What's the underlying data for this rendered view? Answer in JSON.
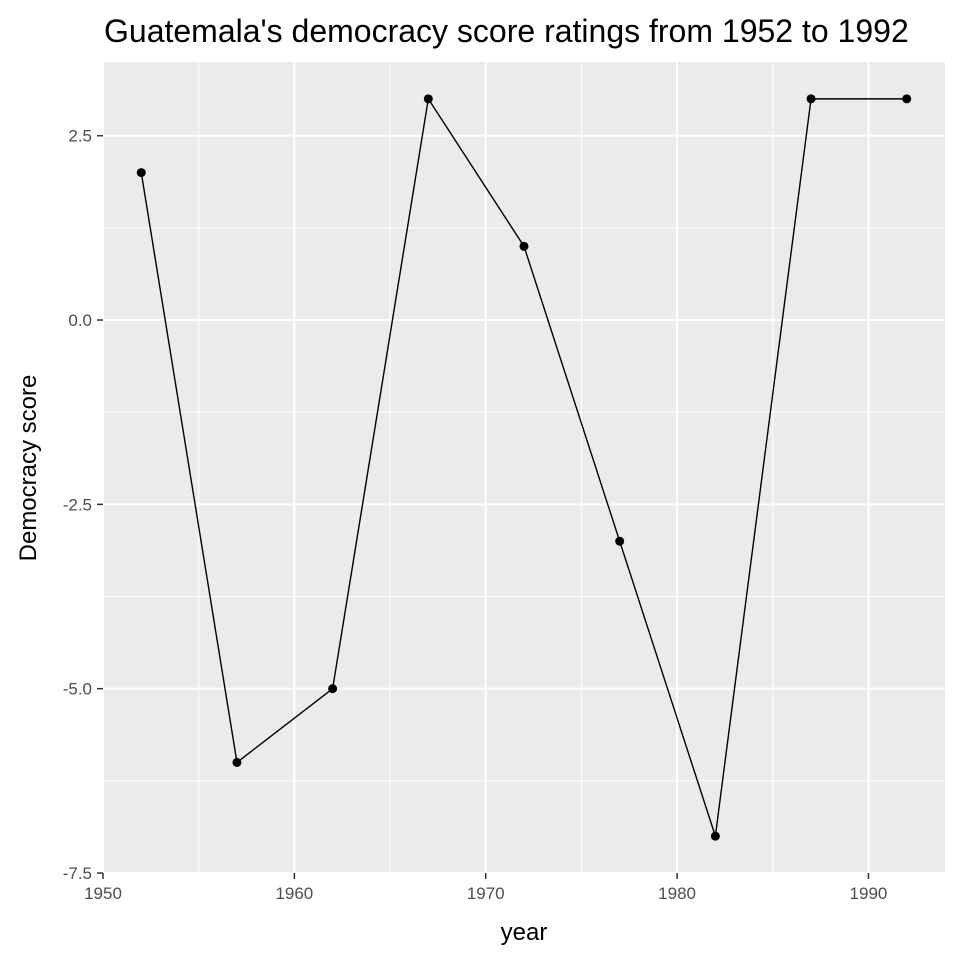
{
  "chart_data": {
    "type": "line",
    "title": "Guatemala's democracy score ratings from 1952 to 1992",
    "xlabel": "year",
    "ylabel": "Democracy score",
    "x": [
      1952,
      1957,
      1962,
      1967,
      1972,
      1977,
      1982,
      1987,
      1992
    ],
    "series": [
      {
        "values": [
          2,
          -6,
          -5,
          3,
          1,
          -3,
          -7,
          3,
          3
        ]
      }
    ],
    "xlim": [
      1950,
      1994
    ],
    "ylim": [
      -7.5,
      3.5
    ],
    "x_ticks": [
      1950,
      1960,
      1970,
      1980,
      1990
    ],
    "x_tick_labels": [
      "1950",
      "1960",
      "1970",
      "1980",
      "1990"
    ],
    "y_ticks": [
      -7.5,
      -5.0,
      -2.5,
      0.0,
      2.5
    ],
    "y_tick_labels": [
      "-7.5",
      "-5.0",
      "-2.5",
      "0.0",
      "2.5"
    ],
    "grid": true,
    "legend": "none",
    "colors": {
      "panel": "#ebebeb",
      "grid": "#ffffff",
      "line": "#000000",
      "point": "#000000",
      "tick_text": "#4d4d4d"
    }
  }
}
